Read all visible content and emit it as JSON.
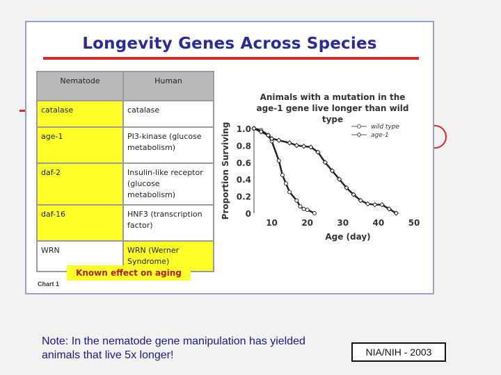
{
  "figure": {
    "title": "Longevity Genes Across Species",
    "table": {
      "headers": [
        "Nematode",
        "Human"
      ],
      "rows": [
        {
          "nematode": "catalase",
          "human": "catalase",
          "nematode_highlight": true,
          "human_highlight": false
        },
        {
          "nematode": "age-1",
          "human": "PI3-kinase (glucose metabolism)",
          "nematode_highlight": true,
          "human_highlight": false
        },
        {
          "nematode": "daf-2",
          "human": "Insulin-like receptor (glucose metabolism)",
          "nematode_highlight": true,
          "human_highlight": false
        },
        {
          "nematode": "daf-16",
          "human": "HNF3 (transcription factor)",
          "nematode_highlight": true,
          "human_highlight": false
        },
        {
          "nematode": "WRN",
          "human": "WRN (Werner Syndrome)",
          "nematode_highlight": false,
          "human_highlight": true
        }
      ]
    },
    "legend_key": "Known effect on aging",
    "chart_caption": "Chart 1",
    "highlight_color": "#ffff2a"
  },
  "chart_data": {
    "type": "line",
    "title": "Animals with a mutation in the age-1 gene live longer than wild type",
    "xlabel": "Age (day)",
    "ylabel": "Proportion Surviving",
    "xlim": [
      5,
      50
    ],
    "ylim": [
      0,
      1.0
    ],
    "xticks": [
      10,
      20,
      30,
      40,
      50
    ],
    "yticks": [
      0,
      0.2,
      0.4,
      0.6,
      0.8,
      1.0
    ],
    "ytick_labels": [
      "0",
      "0.2",
      "0.4",
      "0.6",
      "0.8",
      "1.0"
    ],
    "legend_position": "top-right",
    "series": [
      {
        "name": "wild type",
        "marker": "open-circle",
        "x": [
          5,
          7,
          9,
          10,
          12,
          13,
          14,
          15,
          17,
          18,
          19,
          20,
          22
        ],
        "y": [
          1.0,
          0.98,
          0.92,
          0.85,
          0.62,
          0.45,
          0.35,
          0.25,
          0.15,
          0.08,
          0.05,
          0.04,
          0.0
        ]
      },
      {
        "name": "age-1",
        "marker": "open-diamond",
        "x": [
          5,
          7,
          9,
          10,
          12,
          15,
          17,
          19,
          21,
          23,
          25,
          27,
          29,
          31,
          33,
          35,
          37,
          39,
          41,
          43,
          45
        ],
        "y": [
          1.0,
          0.96,
          0.92,
          0.88,
          0.86,
          0.83,
          0.8,
          0.79,
          0.78,
          0.72,
          0.6,
          0.5,
          0.4,
          0.3,
          0.22,
          0.15,
          0.11,
          0.1,
          0.1,
          0.05,
          0.0
        ]
      }
    ],
    "line_color": "#222222"
  },
  "footer": {
    "note": "Note: In the nematode gene manipulation has yielded animals that live 5x longer!",
    "credit": "NIA/NIH - 2003"
  }
}
